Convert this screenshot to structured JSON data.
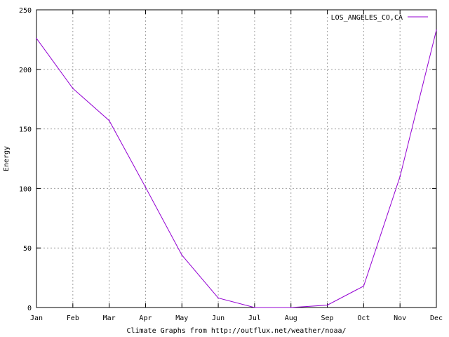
{
  "chart_data": {
    "type": "line",
    "categories": [
      "Jan",
      "Feb",
      "Mar",
      "Apr",
      "May",
      "Jun",
      "Jul",
      "Aug",
      "Sep",
      "Oct",
      "Nov",
      "Dec"
    ],
    "series": [
      {
        "name": "LOS_ANGELES_CO,CA",
        "values": [
          226,
          184,
          157,
          101,
          44,
          8,
          0,
          0,
          2,
          18,
          110,
          233
        ],
        "color": "#9400d3"
      }
    ],
    "title": "",
    "xlabel": "Climate Graphs from http://outflux.net/weather/noaa/",
    "ylabel": "Energy",
    "ylim": [
      0,
      250
    ],
    "yticks": [
      0,
      50,
      100,
      150,
      200,
      250
    ],
    "grid": true,
    "legend_position": "top-right"
  }
}
